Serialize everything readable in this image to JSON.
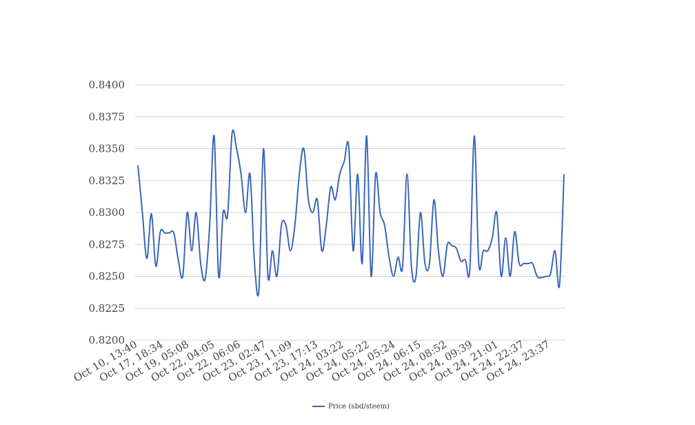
{
  "chart_data": {
    "type": "line",
    "ylim": [
      0.82,
      0.84
    ],
    "y_ticks": [
      "0.8200",
      "0.8225",
      "0.8250",
      "0.8275",
      "0.8300",
      "0.8325",
      "0.8350",
      "0.8375",
      "0.8400"
    ],
    "x_tick_labels": [
      "Oct 10, 13:40",
      "Oct 17, 18:34",
      "Oct 19, 05:08",
      "Oct 22, 04:05",
      "Oct 22, 06:06",
      "Oct 23, 02:47",
      "Oct 23, 11:09",
      "Oct 23, 17:13",
      "Oct 24, 03:22",
      "Oct 24, 05:22",
      "Oct 24, 05:24",
      "Oct 24, 06:15",
      "Oct 24, 08:52",
      "Oct 24, 09:39",
      "Oct 24, 21:01",
      "Oct 24, 22:37",
      "Oct 24, 23:37"
    ],
    "grid": true,
    "legend_position": "bottom",
    "series": [
      {
        "name": "Price (sbd/steem)",
        "color": "#3a66b8",
        "values": [
          0.8337,
          0.83,
          0.8264,
          0.8299,
          0.8258,
          0.8285,
          0.8284,
          0.8284,
          0.8284,
          0.8263,
          0.825,
          0.83,
          0.827,
          0.83,
          0.826,
          0.8248,
          0.829,
          0.836,
          0.825,
          0.83,
          0.8298,
          0.8362,
          0.835,
          0.833,
          0.83,
          0.833,
          0.826,
          0.824,
          0.835,
          0.825,
          0.827,
          0.825,
          0.829,
          0.829,
          0.827,
          0.829,
          0.833,
          0.835,
          0.831,
          0.83,
          0.831,
          0.827,
          0.829,
          0.832,
          0.831,
          0.833,
          0.834,
          0.8352,
          0.827,
          0.833,
          0.826,
          0.836,
          0.825,
          0.833,
          0.83,
          0.829,
          0.8265,
          0.825,
          0.8265,
          0.8257,
          0.833,
          0.8257,
          0.825,
          0.83,
          0.826,
          0.826,
          0.831,
          0.827,
          0.825,
          0.8275,
          0.8274,
          0.8272,
          0.8262,
          0.8263,
          0.8255,
          0.836,
          0.826,
          0.827,
          0.827,
          0.828,
          0.83,
          0.825,
          0.828,
          0.825,
          0.8285,
          0.826,
          0.826,
          0.826,
          0.826,
          0.825,
          0.8249,
          0.825,
          0.8252,
          0.827,
          0.8243,
          0.833
        ]
      }
    ]
  }
}
